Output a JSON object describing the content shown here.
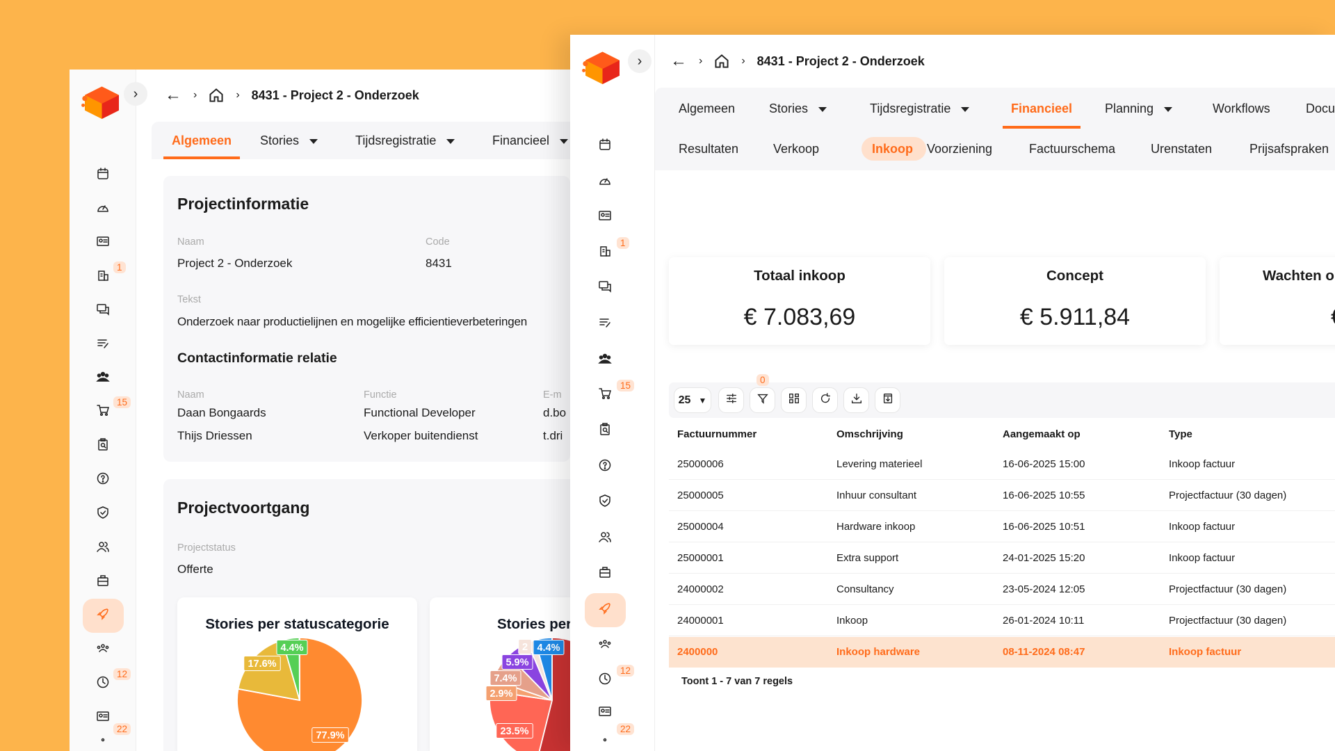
{
  "accent_color": "#FF6B1A",
  "background_color": "#FDB44B",
  "back_window": {
    "breadcrumb": {
      "back_icon": "arrow-left-icon",
      "home_icon": "home-icon",
      "title": "8431 - Project 2 - Onderzoek"
    },
    "sidebar": [
      {
        "icon": "calendar-icon"
      },
      {
        "icon": "gauge-icon"
      },
      {
        "icon": "id-card-icon"
      },
      {
        "icon": "building-icon",
        "badge": "1"
      },
      {
        "icon": "chat-icon"
      },
      {
        "icon": "edit-list-icon"
      },
      {
        "icon": "team-icon"
      },
      {
        "icon": "cart-icon",
        "badge": "15"
      },
      {
        "icon": "clipboard-search-icon"
      },
      {
        "icon": "help-icon"
      },
      {
        "icon": "shield-check-icon"
      },
      {
        "icon": "users-icon"
      },
      {
        "icon": "briefcase-icon"
      },
      {
        "icon": "rocket-icon",
        "active": true
      },
      {
        "icon": "group-icon"
      },
      {
        "icon": "clock-icon",
        "badge": "12"
      },
      {
        "icon": "id-card-icon"
      },
      {
        "icon": "more-icon",
        "badge": "22"
      }
    ],
    "tabs": [
      {
        "label": "Algemeen",
        "active": true
      },
      {
        "label": "Stories",
        "dropdown": true
      },
      {
        "label": "Tijdsregistratie",
        "dropdown": true
      },
      {
        "label": "Financieel",
        "dropdown": true
      }
    ],
    "projectinfo": {
      "title": "Projectinformatie",
      "naam_label": "Naam",
      "naam": "Project 2 - Onderzoek",
      "code_label": "Code",
      "code": "8431",
      "tekst_label": "Tekst",
      "tekst": "Onderzoek naar productielijnen en mogelijke efficientieverbeteringen"
    },
    "contact": {
      "title": "Contactinformatie relatie",
      "headers": [
        "Naam",
        "Functie",
        "E-m"
      ],
      "rows": [
        [
          "Daan Bongaards",
          "Functional Developer",
          "d.bo"
        ],
        [
          "Thijs Driessen",
          "Verkoper buitendienst",
          "t.dri"
        ]
      ]
    },
    "voortgang": {
      "title": "Projectvoortgang",
      "status_label": "Projectstatus",
      "status": "Offerte"
    }
  },
  "chart_data": [
    {
      "type": "pie",
      "title": "Stories per statuscategorie",
      "slices": [
        {
          "value": 77.9,
          "label": "77.9%",
          "color": "#FF8A30"
        },
        {
          "value": 17.6,
          "label": "17.6%",
          "color": "#E8B93A"
        },
        {
          "value": 4.4,
          "label": "4.4%",
          "color": "#55CF55"
        }
      ]
    },
    {
      "type": "pie",
      "title": "Stories per",
      "slices": [
        {
          "value": 23.5,
          "label": "23.5%",
          "color": "#FF6655"
        },
        {
          "value": 2.9,
          "label": "2.9%",
          "color": "#F4A070"
        },
        {
          "value": 7.4,
          "label": "7.4%",
          "color": "#E5A08A"
        },
        {
          "value": 5.9,
          "label": "5.9%",
          "color": "#8A44E0"
        },
        {
          "value": 2,
          "label": "2",
          "color": "#F6E4DC"
        },
        {
          "value": 4.4,
          "label": "4.4%",
          "color": "#1E88E5"
        }
      ],
      "remainder_color": "#C83232"
    }
  ],
  "front_window": {
    "breadcrumb": {
      "back_icon": "arrow-left-icon",
      "home_icon": "home-icon",
      "title": "8431 - Project 2 - Onderzoek"
    },
    "sidebar": [
      {
        "icon": "calendar-icon"
      },
      {
        "icon": "gauge-icon"
      },
      {
        "icon": "id-card-icon"
      },
      {
        "icon": "building-icon",
        "badge": "1"
      },
      {
        "icon": "chat-icon"
      },
      {
        "icon": "edit-list-icon"
      },
      {
        "icon": "team-icon"
      },
      {
        "icon": "cart-icon",
        "badge": "15"
      },
      {
        "icon": "clipboard-search-icon"
      },
      {
        "icon": "help-icon"
      },
      {
        "icon": "shield-check-icon"
      },
      {
        "icon": "users-icon"
      },
      {
        "icon": "briefcase-icon"
      },
      {
        "icon": "rocket-icon",
        "active": true
      },
      {
        "icon": "group-icon"
      },
      {
        "icon": "clock-icon",
        "badge": "12"
      },
      {
        "icon": "id-card-icon"
      },
      {
        "icon": "more-icon",
        "badge": "22"
      }
    ],
    "tabs": [
      {
        "label": "Algemeen"
      },
      {
        "label": "Stories",
        "dropdown": true
      },
      {
        "label": "Tijdsregistratie",
        "dropdown": true
      },
      {
        "label": "Financieel",
        "active": true
      },
      {
        "label": "Planning",
        "dropdown": true
      },
      {
        "label": "Workflows"
      },
      {
        "label": "Docu"
      }
    ],
    "subtabs": [
      {
        "label": "Resultaten"
      },
      {
        "label": "Verkoop"
      },
      {
        "label": "Inkoop",
        "active": true
      },
      {
        "label": "Voorziening"
      },
      {
        "label": "Factuurschema"
      },
      {
        "label": "Urenstaten"
      },
      {
        "label": "Prijsafspraken"
      }
    ],
    "kpis": [
      {
        "title": "Totaal inkoop",
        "value": "€ 7.083,69"
      },
      {
        "title": "Concept",
        "value": "€ 5.911,84"
      },
      {
        "title": "Wachten o",
        "value": "€"
      }
    ],
    "toolbar": {
      "page_size": "25",
      "filter_count": "0",
      "buttons": [
        "sliders-icon",
        "filter-icon",
        "grid-icon",
        "refresh-icon",
        "download-icon",
        "export-icon"
      ]
    },
    "table": {
      "headers": [
        "Factuurnummer",
        "Omschrijving",
        "Aangemaakt op",
        "Type"
      ],
      "rows": [
        [
          "25000006",
          "Levering materieel",
          "16-06-2025 15:00",
          "Inkoop factuur"
        ],
        [
          "25000005",
          "Inhuur consultant",
          "16-06-2025 10:55",
          "Projectfactuur (30 dagen)"
        ],
        [
          "25000004",
          "Hardware inkoop",
          "16-06-2025 10:51",
          "Inkoop factuur"
        ],
        [
          "25000001",
          "Extra support",
          "24-01-2025 15:20",
          "Inkoop factuur"
        ],
        [
          "24000002",
          "Consultancy",
          "23-05-2024 12:05",
          "Projectfactuur (30 dagen)"
        ],
        [
          "24000001",
          "Inkoop",
          "26-01-2024 10:11",
          "Projectfactuur (30 dagen)"
        ],
        [
          "2400000",
          "Inkoop hardware",
          "08-11-2024 08:47",
          "Inkoop factuur"
        ]
      ],
      "highlighted_row": 6,
      "footer": "Toont 1 - 7 van 7 regels"
    }
  }
}
